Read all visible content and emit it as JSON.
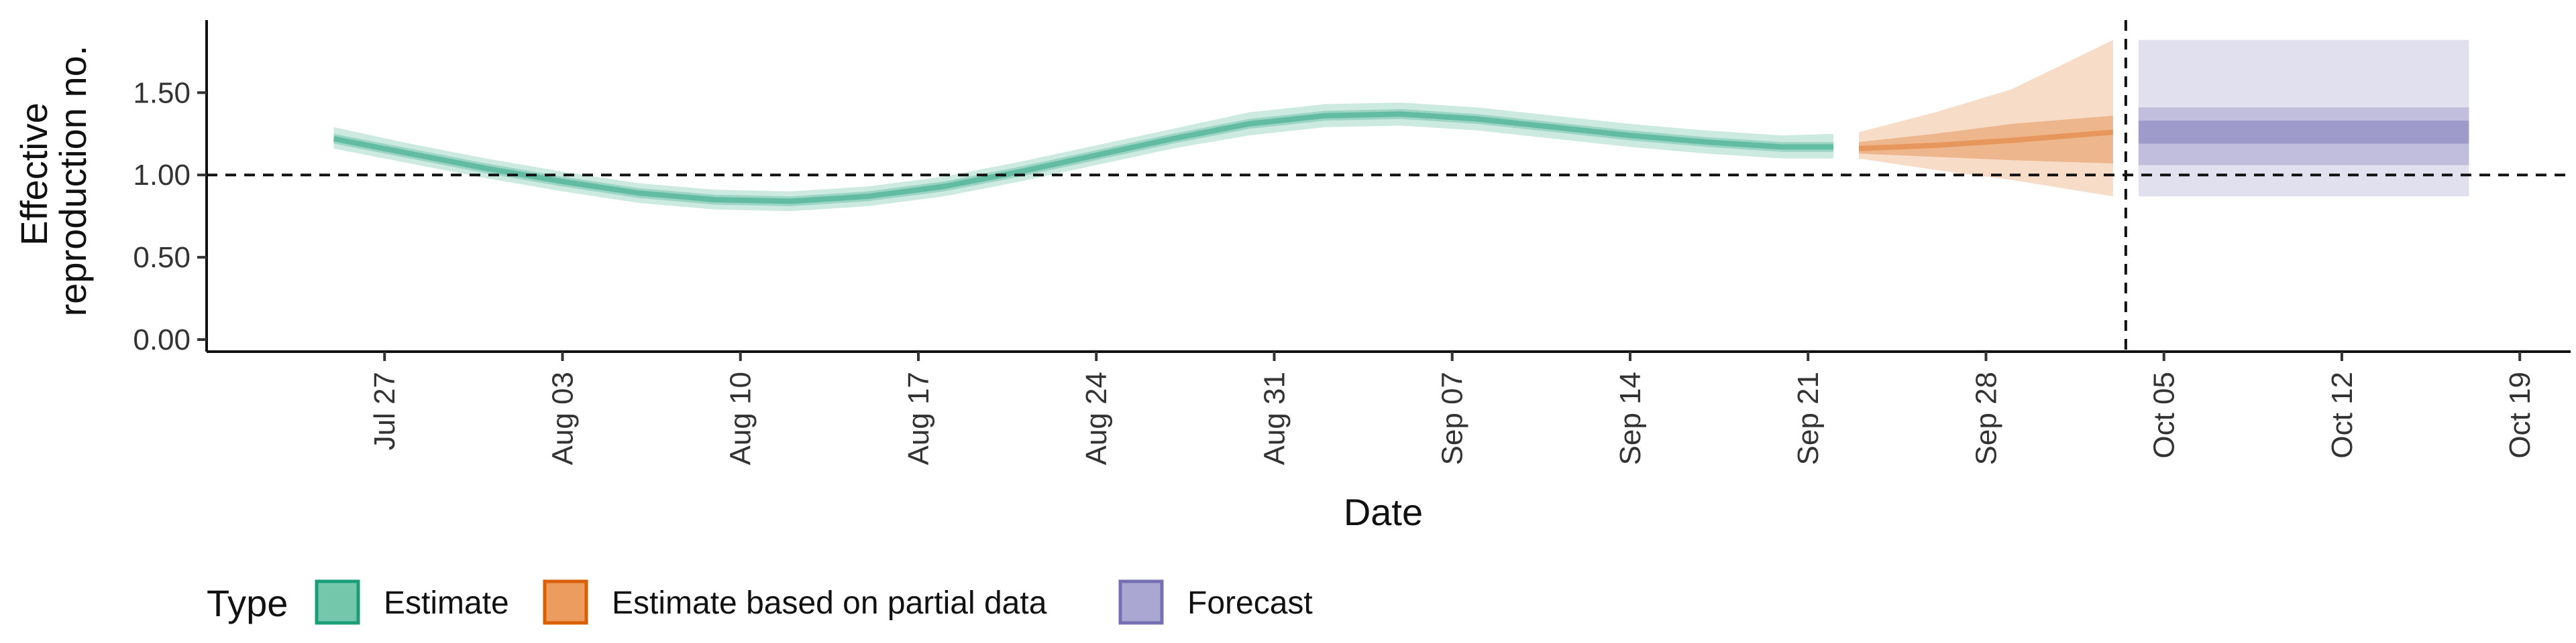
{
  "chart_data": {
    "type": "area",
    "ylabel_line1": "Effective",
    "ylabel_line2": "reproduction no.",
    "xlabel": "Date",
    "ylim": [
      0,
      1.9
    ],
    "y_ticks": [
      0.0,
      0.5,
      1.0,
      1.5
    ],
    "y_tick_labels": [
      "0.00",
      "0.50",
      "1.00",
      "1.50"
    ],
    "x_ticks": [
      "2020-07-27",
      "2020-08-03",
      "2020-08-10",
      "2020-08-17",
      "2020-08-24",
      "2020-08-31",
      "2020-09-07",
      "2020-09-14",
      "2020-09-21",
      "2020-09-28",
      "2020-10-05",
      "2020-10-12",
      "2020-10-19"
    ],
    "x_tick_labels": [
      "Jul 27",
      "Aug 03",
      "Aug 10",
      "Aug 17",
      "Aug 24",
      "Aug 31",
      "Sep 07",
      "Sep 14",
      "Sep 21",
      "Sep 28",
      "Oct 05",
      "Oct 12",
      "Oct 19"
    ],
    "x_range": [
      "2020-07-20",
      "2020-10-21"
    ],
    "reference_line_y": 1.0,
    "forecast_start": "2020-10-03",
    "grid": false,
    "legend_position": "bottom-left",
    "legend_title": "Type",
    "series": [
      {
        "name": "Estimate",
        "color": "#1b9e77",
        "points": [
          {
            "date": "2020-07-25",
            "median": 1.22,
            "lower50": 1.19,
            "upper50": 1.25,
            "lower90": 1.16,
            "upper90": 1.29
          },
          {
            "date": "2020-07-28",
            "median": 1.13,
            "lower50": 1.1,
            "upper50": 1.16,
            "lower90": 1.07,
            "upper90": 1.19
          },
          {
            "date": "2020-07-31",
            "median": 1.04,
            "lower50": 1.01,
            "upper50": 1.07,
            "lower90": 0.98,
            "upper90": 1.1
          },
          {
            "date": "2020-08-03",
            "median": 0.96,
            "lower50": 0.93,
            "upper50": 0.99,
            "lower90": 0.9,
            "upper90": 1.02
          },
          {
            "date": "2020-08-06",
            "median": 0.89,
            "lower50": 0.86,
            "upper50": 0.92,
            "lower90": 0.83,
            "upper90": 0.95
          },
          {
            "date": "2020-08-09",
            "median": 0.85,
            "lower50": 0.82,
            "upper50": 0.88,
            "lower90": 0.79,
            "upper90": 0.91
          },
          {
            "date": "2020-08-12",
            "median": 0.84,
            "lower50": 0.81,
            "upper50": 0.87,
            "lower90": 0.78,
            "upper90": 0.9
          },
          {
            "date": "2020-08-15",
            "median": 0.87,
            "lower50": 0.84,
            "upper50": 0.9,
            "lower90": 0.81,
            "upper90": 0.93
          },
          {
            "date": "2020-08-18",
            "median": 0.93,
            "lower50": 0.9,
            "upper50": 0.96,
            "lower90": 0.87,
            "upper90": 0.99
          },
          {
            "date": "2020-08-21",
            "median": 1.02,
            "lower50": 0.99,
            "upper50": 1.05,
            "lower90": 0.96,
            "upper90": 1.08
          },
          {
            "date": "2020-08-24",
            "median": 1.12,
            "lower50": 1.09,
            "upper50": 1.15,
            "lower90": 1.06,
            "upper90": 1.18
          },
          {
            "date": "2020-08-27",
            "median": 1.22,
            "lower50": 1.19,
            "upper50": 1.25,
            "lower90": 1.16,
            "upper90": 1.28
          },
          {
            "date": "2020-08-30",
            "median": 1.31,
            "lower50": 1.28,
            "upper50": 1.34,
            "lower90": 1.24,
            "upper90": 1.38
          },
          {
            "date": "2020-09-02",
            "median": 1.36,
            "lower50": 1.33,
            "upper50": 1.39,
            "lower90": 1.29,
            "upper90": 1.43
          },
          {
            "date": "2020-09-05",
            "median": 1.37,
            "lower50": 1.34,
            "upper50": 1.4,
            "lower90": 1.3,
            "upper90": 1.44
          },
          {
            "date": "2020-09-08",
            "median": 1.34,
            "lower50": 1.31,
            "upper50": 1.37,
            "lower90": 1.27,
            "upper90": 1.41
          },
          {
            "date": "2020-09-11",
            "median": 1.29,
            "lower50": 1.26,
            "upper50": 1.32,
            "lower90": 1.22,
            "upper90": 1.36
          },
          {
            "date": "2020-09-14",
            "median": 1.24,
            "lower50": 1.21,
            "upper50": 1.27,
            "lower90": 1.17,
            "upper90": 1.31
          },
          {
            "date": "2020-09-17",
            "median": 1.2,
            "lower50": 1.17,
            "upper50": 1.23,
            "lower90": 1.13,
            "upper90": 1.27
          },
          {
            "date": "2020-09-20",
            "median": 1.17,
            "lower50": 1.14,
            "upper50": 1.2,
            "lower90": 1.1,
            "upper90": 1.24
          },
          {
            "date": "2020-09-22",
            "median": 1.17,
            "lower50": 1.14,
            "upper50": 1.2,
            "lower90": 1.1,
            "upper90": 1.25
          }
        ]
      },
      {
        "name": "Estimate based on partial data",
        "color": "#d95f02",
        "points": [
          {
            "date": "2020-09-23",
            "median": 1.16,
            "lower50": 1.13,
            "upper50": 1.2,
            "lower90": 1.1,
            "upper90": 1.26
          },
          {
            "date": "2020-09-26",
            "median": 1.18,
            "lower50": 1.11,
            "upper50": 1.25,
            "lower90": 1.03,
            "upper90": 1.38
          },
          {
            "date": "2020-09-29",
            "median": 1.21,
            "lower50": 1.09,
            "upper50": 1.31,
            "lower90": 0.97,
            "upper90": 1.52
          },
          {
            "date": "2020-10-03",
            "median": 1.26,
            "lower50": 1.07,
            "upper50": 1.36,
            "lower90": 0.87,
            "upper90": 1.82
          }
        ]
      },
      {
        "name": "Forecast",
        "color": "#7570b3",
        "points": [
          {
            "date": "2020-10-04",
            "median": 1.26,
            "lower50": 1.19,
            "upper50": 1.33,
            "lower20": 1.19,
            "upper20": 1.33,
            "lower50b": 1.06,
            "upper50b": 1.41,
            "lower90": 0.87,
            "upper90": 1.82
          },
          {
            "date": "2020-10-17",
            "median": 1.26,
            "lower50": 1.19,
            "upper50": 1.33,
            "lower20": 1.19,
            "upper20": 1.33,
            "lower50b": 1.06,
            "upper50b": 1.41,
            "lower90": 0.87,
            "upper90": 1.82
          }
        ]
      }
    ]
  }
}
